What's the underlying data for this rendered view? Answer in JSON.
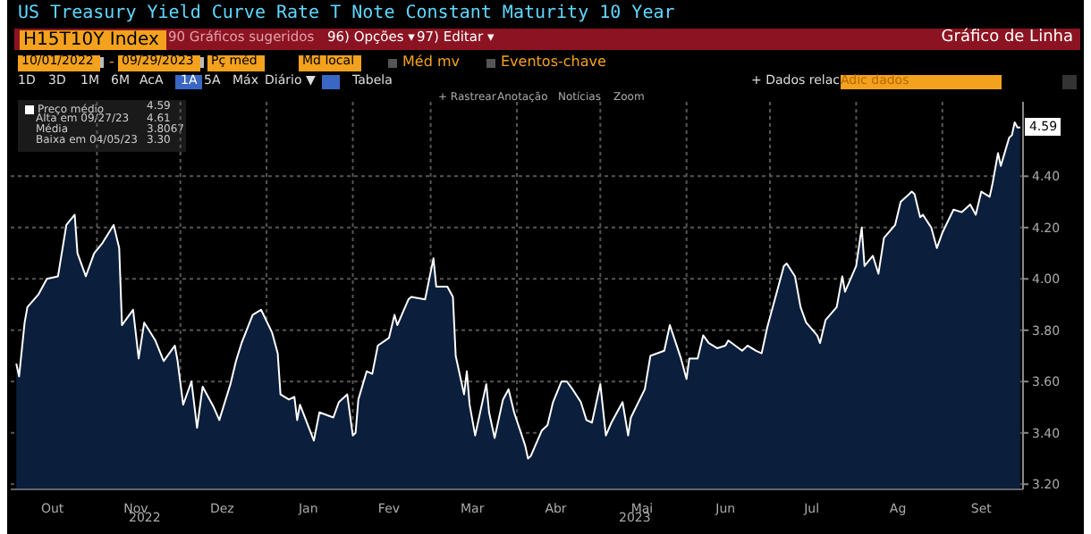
{
  "chart_data": {
    "type": "area",
    "title": "US Treasury Yield Curve Rate T Note Constant Maturity 10 Year",
    "x": [
      "2022-10-03",
      "2022-10-04",
      "2022-10-06",
      "2022-10-07",
      "2022-10-11",
      "2022-10-14",
      "2022-10-18",
      "2022-10-21",
      "2022-10-24",
      "2022-10-25",
      "2022-10-28",
      "2022-10-31",
      "2022-11-03",
      "2022-11-07",
      "2022-11-09",
      "2022-11-10",
      "2022-11-14",
      "2022-11-16",
      "2022-11-18",
      "2022-11-22",
      "2022-11-25",
      "2022-11-29",
      "2022-11-30",
      "2022-12-02",
      "2022-12-05",
      "2022-12-07",
      "2022-12-09",
      "2022-12-13",
      "2022-12-15",
      "2022-12-19",
      "2022-12-21",
      "2022-12-23",
      "2022-12-27",
      "2022-12-30",
      "2023-01-03",
      "2023-01-05",
      "2023-01-06",
      "2023-01-09",
      "2023-01-11",
      "2023-01-12",
      "2023-01-13",
      "2023-01-18",
      "2023-01-20",
      "2023-01-25",
      "2023-01-27",
      "2023-01-30",
      "2023-02-01",
      "2023-02-02",
      "2023-02-03",
      "2023-02-06",
      "2023-02-08",
      "2023-02-10",
      "2023-02-14",
      "2023-02-16",
      "2023-02-17",
      "2023-02-21",
      "2023-02-22",
      "2023-02-27",
      "2023-03-02",
      "2023-03-03",
      "2023-03-07",
      "2023-03-09",
      "2023-03-10",
      "2023-03-13",
      "2023-03-14",
      "2023-03-15",
      "2023-03-17",
      "2023-03-21",
      "2023-03-22",
      "2023-03-24",
      "2023-03-27",
      "2023-03-29",
      "2023-03-31",
      "2023-04-04",
      "2023-04-05",
      "2023-04-06",
      "2023-04-10",
      "2023-04-12",
      "2023-04-14",
      "2023-04-17",
      "2023-04-19",
      "2023-04-21",
      "2023-04-24",
      "2023-04-26",
      "2023-04-28",
      "2023-05-01",
      "2023-05-03",
      "2023-05-05",
      "2023-05-09",
      "2023-05-11",
      "2023-05-12",
      "2023-05-17",
      "2023-05-19",
      "2023-05-24",
      "2023-05-26",
      "2023-05-30",
      "2023-06-01",
      "2023-06-02",
      "2023-06-05",
      "2023-06-07",
      "2023-06-09",
      "2023-06-12",
      "2023-06-15",
      "2023-06-16",
      "2023-06-21",
      "2023-06-23",
      "2023-06-26",
      "2023-06-28",
      "2023-06-30",
      "2023-07-06",
      "2023-07-07",
      "2023-07-10",
      "2023-07-12",
      "2023-07-14",
      "2023-07-18",
      "2023-07-19",
      "2023-07-21",
      "2023-07-25",
      "2023-07-27",
      "2023-07-28",
      "2023-08-01",
      "2023-08-03",
      "2023-08-04",
      "2023-08-07",
      "2023-08-09",
      "2023-08-11",
      "2023-08-15",
      "2023-08-17",
      "2023-08-21",
      "2023-08-22",
      "2023-08-24",
      "2023-08-25",
      "2023-08-28",
      "2023-08-30",
      "2023-09-01",
      "2023-09-05",
      "2023-09-08",
      "2023-09-11",
      "2023-09-13",
      "2023-09-15",
      "2023-09-18",
      "2023-09-19",
      "2023-09-21",
      "2023-09-22",
      "2023-09-25",
      "2023-09-26",
      "2023-09-27",
      "2023-09-28",
      "2023-09-29"
    ],
    "series": [
      {
        "name": "Preço médio",
        "color": "#0b1e3b",
        "values": [
          3.67,
          3.62,
          3.83,
          3.89,
          3.94,
          4.0,
          4.01,
          4.21,
          4.25,
          4.1,
          4.01,
          4.1,
          4.14,
          4.21,
          4.12,
          3.82,
          3.88,
          3.69,
          3.83,
          3.76,
          3.68,
          3.74,
          3.68,
          3.51,
          3.6,
          3.42,
          3.58,
          3.5,
          3.45,
          3.59,
          3.68,
          3.75,
          3.86,
          3.88,
          3.79,
          3.71,
          3.55,
          3.53,
          3.54,
          3.45,
          3.51,
          3.37,
          3.48,
          3.46,
          3.52,
          3.55,
          3.39,
          3.4,
          3.53,
          3.64,
          3.63,
          3.74,
          3.77,
          3.86,
          3.82,
          3.92,
          3.93,
          3.92,
          4.08,
          3.97,
          3.97,
          3.93,
          3.7,
          3.55,
          3.64,
          3.51,
          3.39,
          3.59,
          3.48,
          3.38,
          3.53,
          3.57,
          3.48,
          3.35,
          3.3,
          3.31,
          3.41,
          3.43,
          3.52,
          3.6,
          3.6,
          3.57,
          3.52,
          3.45,
          3.44,
          3.59,
          3.39,
          3.44,
          3.52,
          3.39,
          3.46,
          3.57,
          3.7,
          3.72,
          3.82,
          3.69,
          3.61,
          3.69,
          3.69,
          3.78,
          3.75,
          3.73,
          3.74,
          3.76,
          3.72,
          3.74,
          3.72,
          3.71,
          3.81,
          4.05,
          4.06,
          4.01,
          3.89,
          3.83,
          3.78,
          3.75,
          3.84,
          3.89,
          4.01,
          3.95,
          4.05,
          4.2,
          4.05,
          4.09,
          4.02,
          4.16,
          4.21,
          4.3,
          4.34,
          4.33,
          4.24,
          4.25,
          4.2,
          4.12,
          4.18,
          4.27,
          4.26,
          4.29,
          4.25,
          4.34,
          4.32,
          4.37,
          4.49,
          4.44,
          4.55,
          4.56,
          4.61,
          4.59,
          4.59
        ]
      }
    ],
    "xlim": [
      "2022-10-01",
      "2023-09-30"
    ],
    "xticks": [
      {
        "value": "2022-10-16",
        "label": "Out"
      },
      {
        "value": "2022-11-01",
        "label": null
      },
      {
        "value": "2022-11-15",
        "label": "Nov"
      },
      {
        "value": "2022-12-01",
        "label": null
      },
      {
        "value": "2022-12-16",
        "label": "Dez"
      },
      {
        "value": "2023-01-01",
        "label": null
      },
      {
        "value": "2023-01-16",
        "label": "Jan"
      },
      {
        "value": "2023-02-01",
        "label": null
      },
      {
        "value": "2023-02-14",
        "label": "Fev"
      },
      {
        "value": "2023-03-01",
        "label": null
      },
      {
        "value": "2023-03-16",
        "label": "Mar"
      },
      {
        "value": "2023-04-01",
        "label": null
      },
      {
        "value": "2023-04-15",
        "label": "Abr"
      },
      {
        "value": "2023-05-01",
        "label": null
      },
      {
        "value": "2023-05-16",
        "label": "Mai"
      },
      {
        "value": "2023-06-01",
        "label": null
      },
      {
        "value": "2023-06-15",
        "label": "Jun"
      },
      {
        "value": "2023-07-01",
        "label": null
      },
      {
        "value": "2023-07-16",
        "label": "Jul"
      },
      {
        "value": "2023-08-01",
        "label": null
      },
      {
        "value": "2023-08-16",
        "label": "Ag"
      },
      {
        "value": "2023-09-01",
        "label": null
      },
      {
        "value": "2023-09-15",
        "label": "Set"
      }
    ],
    "ylim": [
      3.18,
      4.69
    ],
    "yticks": [
      {
        "value": 3.2,
        "label": "3.20"
      },
      {
        "value": 3.4,
        "label": "3.40"
      },
      {
        "value": 3.6,
        "label": "3.60"
      },
      {
        "value": 3.8,
        "label": "3.80"
      },
      {
        "value": 4.0,
        "label": "4.00"
      },
      {
        "value": 4.2,
        "label": "4.20"
      },
      {
        "value": 4.4,
        "label": "4.40"
      }
    ],
    "grid": true,
    "legend": "top left",
    "annotations": [
      "H15T10Y Index",
      "90 Gráficos sugeridos",
      "96) Opções ▾",
      "97) Editar ▾",
      "Gráfico de Linha",
      "10/01/2022",
      "-",
      "09/29/2023",
      "Pç méd",
      "Md local",
      "Méd mv",
      "Eventos-chave",
      "1D",
      "3D",
      "1M",
      "6M",
      "AcA",
      "1A",
      "5A",
      "Máx",
      "Diário ▼",
      "Tabela",
      "+ Dados relac",
      "Adic dados",
      "+ Rastrear",
      "Anotação",
      "Notícias",
      "Zoom",
      "4.59",
      "Alta em 09/27/23",
      "4.61",
      "Média",
      "3.8067",
      "Baixa em 04/05/23",
      "3.30",
      "2022",
      "2023",
      {
        "text": "4.59",
        "x": "2023-09-29",
        "y": 4.59
      }
    ]
  }
}
